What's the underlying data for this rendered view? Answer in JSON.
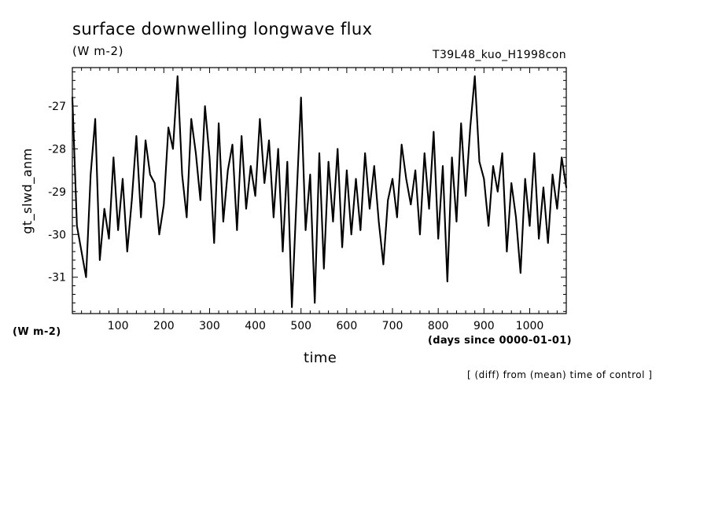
{
  "chart_data": {
    "type": "line",
    "title": "surface downwelling longwave flux",
    "unit": "(W m-2)",
    "experiment": "T39L48_kuo_H1998con",
    "xlabel": "time",
    "x_unit": "(days since 0000-01-01)",
    "ylabel": "gt_slwd_anm",
    "y_unit": "(W m-2)",
    "note": "[ (diff) from (mean) time of control ]",
    "xlim": [
      0,
      1080
    ],
    "ylim": [
      -31.85,
      -26.1
    ],
    "x_ticks": [
      100,
      200,
      300,
      400,
      500,
      600,
      700,
      800,
      900,
      1000
    ],
    "x_tick_labels": [
      "100",
      "200",
      "300",
      "400",
      "500",
      "600",
      "700",
      "800",
      "900",
      "1000"
    ],
    "y_ticks": [
      -27,
      -28,
      -29,
      -30,
      -31
    ],
    "y_tick_labels": [
      "-27",
      "-28",
      "-29",
      "-30",
      "-31"
    ],
    "grid": false,
    "series": [
      {
        "x": [
          0,
          10,
          20,
          30,
          40,
          50,
          60,
          70,
          80,
          90,
          100,
          110,
          120,
          130,
          140,
          150,
          160,
          170,
          180,
          190,
          200,
          210,
          220,
          230,
          240,
          250,
          260,
          270,
          280,
          290,
          300,
          310,
          320,
          330,
          340,
          350,
          360,
          370,
          380,
          390,
          400,
          410,
          420,
          430,
          440,
          450,
          460,
          470,
          480,
          490,
          500,
          510,
          520,
          530,
          540,
          550,
          560,
          570,
          580,
          590,
          600,
          610,
          620,
          630,
          640,
          650,
          660,
          670,
          680,
          690,
          700,
          710,
          720,
          730,
          740,
          750,
          760,
          770,
          780,
          790,
          800,
          810,
          820,
          830,
          840,
          850,
          860,
          870,
          880,
          890,
          900,
          910,
          920,
          930,
          940,
          950,
          960,
          970,
          980,
          990,
          1000,
          1010,
          1020,
          1030,
          1040,
          1050,
          1060,
          1070,
          1080
        ],
        "y": [
          -26.8,
          -29.8,
          -30.4,
          -31.0,
          -28.6,
          -27.3,
          -30.6,
          -29.4,
          -30.1,
          -28.2,
          -29.9,
          -28.7,
          -30.4,
          -29.2,
          -27.7,
          -29.6,
          -27.8,
          -28.6,
          -28.8,
          -30.0,
          -29.3,
          -27.5,
          -28.0,
          -26.3,
          -28.6,
          -29.6,
          -27.3,
          -28.1,
          -29.2,
          -27.0,
          -28.2,
          -30.2,
          -27.4,
          -29.7,
          -28.5,
          -27.9,
          -29.9,
          -27.7,
          -29.4,
          -28.4,
          -29.1,
          -27.3,
          -28.8,
          -27.8,
          -29.6,
          -28.0,
          -30.4,
          -28.3,
          -31.7,
          -29.2,
          -26.8,
          -29.9,
          -28.6,
          -31.6,
          -28.1,
          -30.8,
          -28.3,
          -29.7,
          -28.0,
          -30.3,
          -28.5,
          -30.0,
          -28.7,
          -29.9,
          -28.1,
          -29.4,
          -28.4,
          -29.7,
          -30.7,
          -29.2,
          -28.7,
          -29.6,
          -27.9,
          -28.7,
          -29.3,
          -28.5,
          -30.0,
          -28.1,
          -29.4,
          -27.6,
          -30.1,
          -28.4,
          -31.1,
          -28.2,
          -29.7,
          -27.4,
          -29.1,
          -27.5,
          -26.3,
          -28.3,
          -28.7,
          -29.8,
          -28.4,
          -29.0,
          -28.1,
          -30.4,
          -28.8,
          -29.6,
          -30.9,
          -28.7,
          -29.8,
          -28.1,
          -30.1,
          -28.9,
          -30.2,
          -28.6,
          -29.4,
          -28.2,
          -28.9
        ]
      }
    ]
  }
}
